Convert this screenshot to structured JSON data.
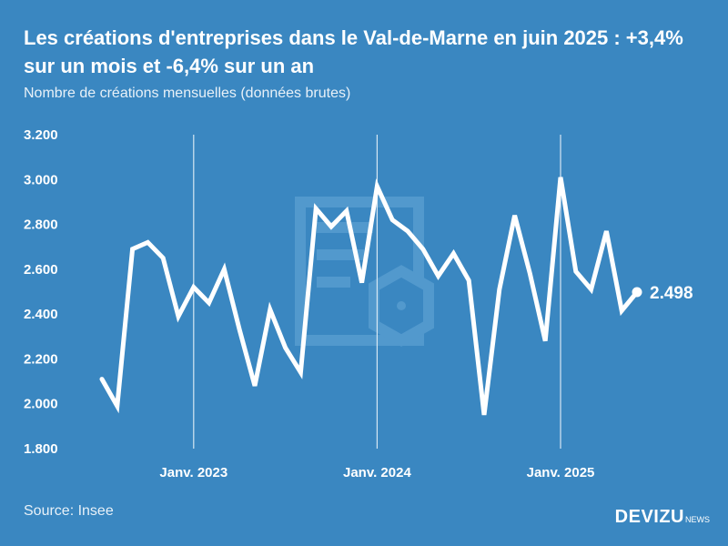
{
  "header": {
    "title": "Les créations d'entreprises dans le Val-de-Marne en juin 2025 : +3,4% sur un mois et -6,4% sur un an",
    "subtitle": "Nombre de créations mensuelles (données brutes)"
  },
  "footer": {
    "source": "Source: Insee",
    "brand_name": "DEVIZU",
    "brand_suffix": "NEWS"
  },
  "colors": {
    "background": "#3a87c1",
    "line": "#ffffff",
    "watermark": "#5b9fd1"
  },
  "chart_data": {
    "type": "line",
    "x_start": "2022-07",
    "x_end": "2025-06",
    "x_tick_labels": [
      "Janv. 2023",
      "Janv. 2024",
      "Janv. 2025"
    ],
    "x_tick_months": [
      "2023-01",
      "2024-01",
      "2025-01"
    ],
    "y_tick_labels": [
      "1.800",
      "2.000",
      "2.200",
      "2.400",
      "2.600",
      "2.800",
      "3.000",
      "3.200"
    ],
    "ylim": [
      1800,
      3200
    ],
    "grid": "vertical lines at January ticks",
    "series": [
      {
        "values": [
          2110,
          1990,
          2690,
          2720,
          2650,
          2390,
          2520,
          2450,
          2600,
          2330,
          2080,
          2420,
          2250,
          2140,
          2870,
          2790,
          2860,
          2540,
          2970,
          2820,
          2770,
          2690,
          2570,
          2670,
          2550,
          1950,
          2510,
          2840,
          2580,
          2280,
          3010,
          2590,
          2510,
          2770,
          2415,
          2498
        ]
      }
    ],
    "last_value_label": "2.498"
  }
}
